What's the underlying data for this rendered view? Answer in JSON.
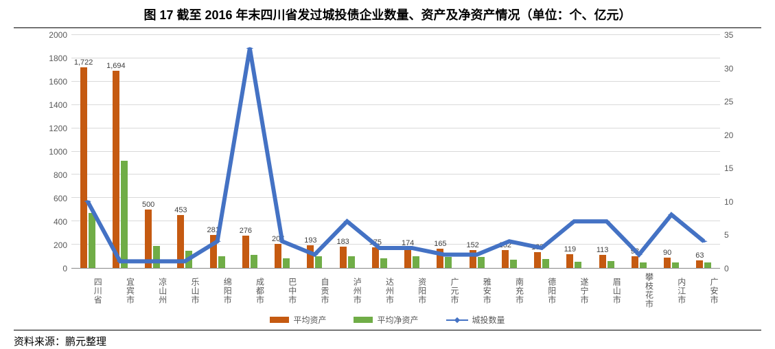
{
  "title": "图 17 截至 2016 年末四川省发过城投债企业数量、资产及净资产情况（单位：个、亿元）",
  "source": "资料来源：鹏元整理",
  "chart": {
    "type": "bar+line",
    "background_color": "#ffffff",
    "grid_color": "#d9d9d9",
    "axis_font_size": 12,
    "title_font_size": 18,
    "categories": [
      "四川省",
      "宜宾市",
      "凉山州",
      "乐山市",
      "绵阳市",
      "成都市",
      "巴中市",
      "自贡市",
      "泸州市",
      "达州市",
      "资阳市",
      "广元市",
      "雅安市",
      "南充市",
      "德阳市",
      "遂宁市",
      "眉山市",
      "攀枝花市",
      "内江市",
      "广安市"
    ],
    "y_left": {
      "min": 0,
      "max": 2000,
      "step": 200
    },
    "y_right": {
      "min": 0,
      "max": 35,
      "step": 5
    },
    "series_bar1": {
      "name": "平均资产",
      "color": "#c55a11",
      "values": [
        1722,
        1694,
        500,
        453,
        281,
        276,
        207,
        193,
        183,
        175,
        174,
        165,
        152,
        152,
        133,
        119,
        113,
        98,
        90,
        63
      ],
      "show_labels": true
    },
    "series_bar2": {
      "name": "平均净资产",
      "color": "#70ad47",
      "values": [
        470,
        920,
        190,
        150,
        100,
        110,
        85,
        100,
        100,
        80,
        100,
        95,
        95,
        70,
        75,
        55,
        60,
        50,
        50,
        45
      ],
      "show_labels": false
    },
    "series_line": {
      "name": "城投数量",
      "color": "#4472c4",
      "values": [
        10,
        1,
        1,
        1,
        4,
        33,
        4,
        2,
        7,
        3,
        3,
        2,
        2,
        4,
        3,
        7,
        7,
        2,
        8,
        4
      ],
      "marker": "diamond",
      "line_width": 2
    },
    "legend": {
      "items": [
        {
          "key": "bar1",
          "label": "平均资产"
        },
        {
          "key": "bar2",
          "label": "平均净资产"
        },
        {
          "key": "line",
          "label": "城投数量"
        }
      ]
    }
  }
}
